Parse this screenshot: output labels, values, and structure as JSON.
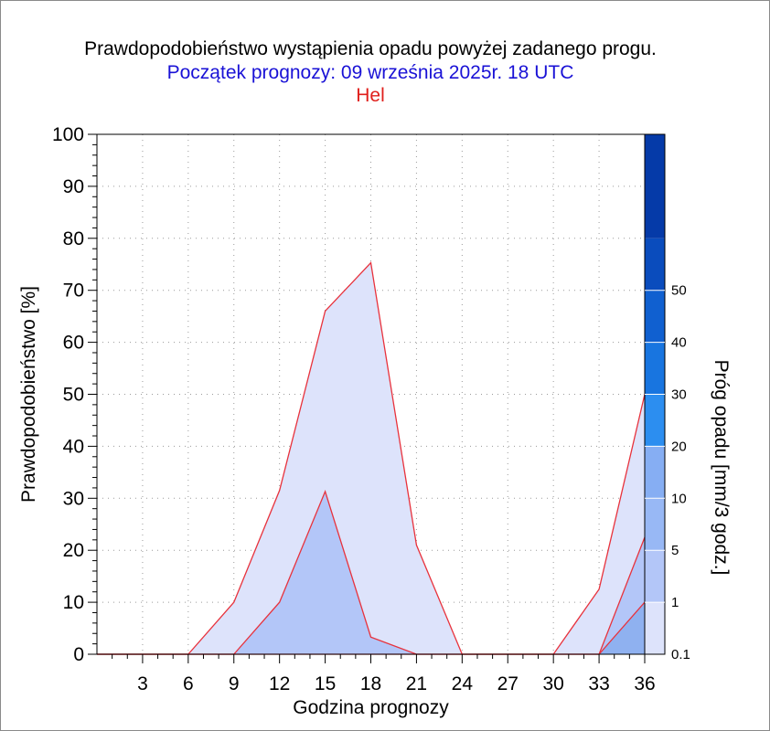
{
  "title": "Prawdopodobieństwo wystąpienia opadu powyżej zadanego progu.",
  "subtitle": "Początek prognozy: 09 września 2025r. 18 UTC",
  "station": "Hel",
  "colors": {
    "title": "#000000",
    "subtitle": "#1a12d6",
    "station": "#e0201c",
    "outline": "#e8323c"
  },
  "chart_data": {
    "type": "area",
    "xlabel": "Godzina prognozy",
    "ylabel": "Prawdopodobieństwo [%]",
    "xlim": [
      0,
      36
    ],
    "ylim": [
      0,
      100
    ],
    "x_ticks": [
      3,
      6,
      9,
      12,
      15,
      18,
      21,
      24,
      27,
      30,
      33,
      36
    ],
    "y_ticks": [
      0,
      10,
      20,
      30,
      40,
      50,
      60,
      70,
      80,
      90,
      100
    ],
    "grid": true,
    "x": [
      0,
      3,
      6,
      9,
      12,
      15,
      18,
      21,
      24,
      27,
      30,
      33,
      36
    ],
    "series": [
      {
        "threshold": 0.1,
        "color": "#dde3fb",
        "values": [
          0,
          0,
          0,
          10,
          31.5,
          66,
          75.3,
          21,
          0,
          0,
          0,
          12.5,
          50
        ]
      },
      {
        "threshold": 1,
        "color": "#b3c6f8",
        "values": [
          0,
          0,
          0,
          0,
          10,
          31.3,
          3.3,
          0,
          0,
          0,
          0,
          0,
          22.5
        ]
      },
      {
        "threshold": 5,
        "color": "#8fb1f0",
        "values": [
          0,
          0,
          0,
          0,
          0,
          0,
          0,
          0,
          0,
          0,
          0,
          0,
          10
        ]
      }
    ],
    "colorbar": {
      "label": "Próg opadu [mm/3 godz.]",
      "ticks": [
        "0.1",
        "1",
        "5",
        "10",
        "20",
        "30",
        "40",
        "50"
      ],
      "colors": [
        "#dde3fb",
        "#b3c6f8",
        "#98b8f5",
        "#86aef3",
        "#2c8ef0",
        "#1875e0",
        "#1060d0",
        "#0a4cbd",
        "#053aa8"
      ]
    }
  }
}
